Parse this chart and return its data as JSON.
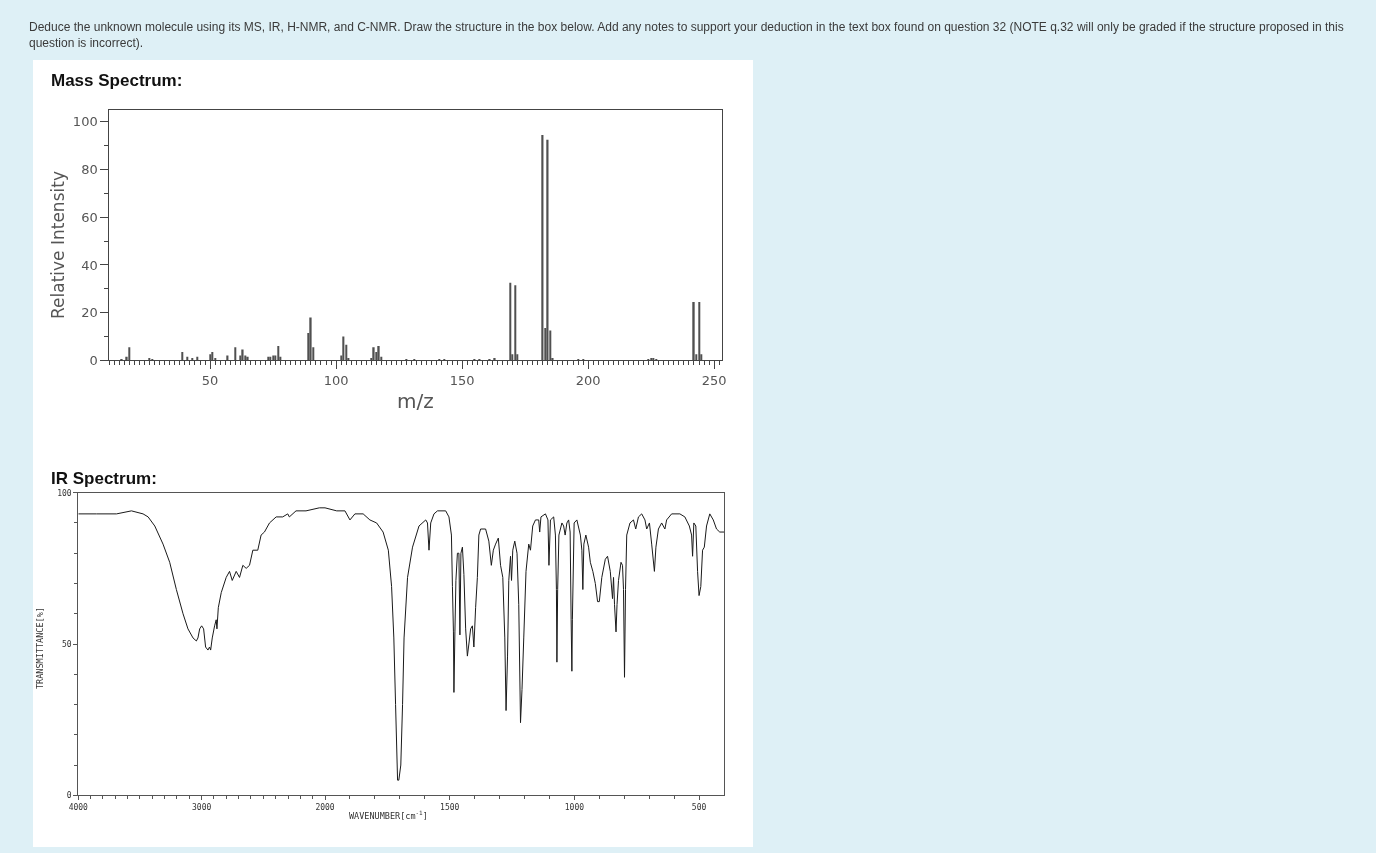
{
  "chart_data": [
    {
      "type": "bar",
      "title": "Mass Spectrum:",
      "annotations": [
        "Deduce the unknown molecule using its MS, IR, H-NMR, and C-NMR. Draw the structure in the box below. Add any notes to support your deduction in the text box found on question 32 (NOTE q.32 will only be graded if the structure proposed in this question is incorrect)."
      ],
      "xlabel": "m/z",
      "ylabel": "Relative Intensity",
      "color": "#505050",
      "x": [
        15,
        17,
        18,
        26,
        27,
        39,
        41,
        43,
        45,
        50,
        51,
        52,
        57,
        60,
        62,
        63,
        64,
        65,
        73,
        74,
        75,
        76,
        77,
        78,
        89,
        90,
        91,
        102,
        103,
        104,
        105,
        114,
        115,
        116,
        117,
        118,
        128,
        131,
        141,
        143,
        155,
        157,
        161,
        163,
        169,
        170,
        171,
        172,
        182,
        183,
        184,
        185,
        186,
        196,
        198,
        224,
        225,
        226,
        227,
        242,
        243,
        244,
        245
      ],
      "values": [
        0.5,
        1.5,
        5.5,
        1,
        0.5,
        3.5,
        1.5,
        1,
        1.5,
        2.5,
        3.5,
        1,
        2,
        5.5,
        2,
        4.5,
        2,
        1.5,
        1.5,
        1.5,
        2,
        2,
        6,
        1.5,
        11.5,
        18,
        5.5,
        2,
        10,
        6.5,
        1,
        1,
        5.5,
        3.5,
        6,
        1.5,
        0.5,
        0.5,
        0.5,
        0.5,
        0.5,
        0.5,
        0.5,
        1,
        32.5,
        2.5,
        31.5,
        2.5,
        94.5,
        13.5,
        92.5,
        12.5,
        1,
        0.5,
        0.5,
        0.5,
        1,
        1,
        0.5,
        24.5,
        2.5,
        24.5,
        2.5
      ],
      "xlim": [
        10,
        253
      ],
      "ylim": [
        0,
        105
      ],
      "yticks": [
        0,
        {
          "value": 10,
          "label": null
        },
        20,
        {
          "value": 30,
          "label": null
        },
        40,
        {
          "value": 50,
          "label": null
        },
        60,
        {
          "value": 70,
          "label": null
        },
        80,
        {
          "value": 90,
          "label": null
        },
        100
      ],
      "xticks": [
        {
          "value": 10,
          "label": null
        },
        {
          "value": 12,
          "label": null
        },
        {
          "value": 14,
          "label": null
        },
        {
          "value": 16,
          "label": null
        },
        {
          "value": 18,
          "label": null
        },
        {
          "value": 20,
          "label": null
        },
        {
          "value": 22,
          "label": null
        },
        {
          "value": 24,
          "label": null
        },
        {
          "value": 26,
          "label": null
        },
        {
          "value": 28,
          "label": null
        },
        {
          "value": 30,
          "label": null
        },
        {
          "value": 32,
          "label": null
        },
        {
          "value": 34,
          "label": null
        },
        {
          "value": 36,
          "label": null
        },
        {
          "value": 38,
          "label": null
        },
        {
          "value": 40,
          "label": null
        },
        {
          "value": 42,
          "label": null
        },
        {
          "value": 44,
          "label": null
        },
        {
          "value": 46,
          "label": null
        },
        {
          "value": 48,
          "label": null
        },
        50,
        {
          "value": 52,
          "label": null
        },
        {
          "value": 54,
          "label": null
        },
        {
          "value": 56,
          "label": null
        },
        {
          "value": 58,
          "label": null
        },
        {
          "value": 60,
          "label": null
        },
        {
          "value": 62,
          "label": null
        },
        {
          "value": 64,
          "label": null
        },
        {
          "value": 66,
          "label": null
        },
        {
          "value": 68,
          "label": null
        },
        {
          "value": 70,
          "label": null
        },
        {
          "value": 72,
          "label": null
        },
        {
          "value": 74,
          "label": null
        },
        {
          "value": 76,
          "label": null
        },
        {
          "value": 78,
          "label": null
        },
        {
          "value": 80,
          "label": null
        },
        {
          "value": 82,
          "label": null
        },
        {
          "value": 84,
          "label": null
        },
        {
          "value": 86,
          "label": null
        },
        {
          "value": 88,
          "label": null
        },
        {
          "value": 90,
          "label": null
        },
        {
          "value": 92,
          "label": null
        },
        {
          "value": 94,
          "label": null
        },
        {
          "value": 96,
          "label": null
        },
        {
          "value": 98,
          "label": null
        },
        100,
        {
          "value": 102,
          "label": null
        },
        {
          "value": 104,
          "label": null
        },
        {
          "value": 106,
          "label": null
        },
        {
          "value": 108,
          "label": null
        },
        {
          "value": 110,
          "label": null
        },
        {
          "value": 112,
          "label": null
        },
        {
          "value": 114,
          "label": null
        },
        {
          "value": 116,
          "label": null
        },
        {
          "value": 118,
          "label": null
        },
        {
          "value": 120,
          "label": null
        },
        {
          "value": 122,
          "label": null
        },
        {
          "value": 124,
          "label": null
        },
        {
          "value": 126,
          "label": null
        },
        {
          "value": 128,
          "label": null
        },
        {
          "value": 130,
          "label": null
        },
        {
          "value": 132,
          "label": null
        },
        {
          "value": 134,
          "label": null
        },
        {
          "value": 136,
          "label": null
        },
        {
          "value": 138,
          "label": null
        },
        {
          "value": 140,
          "label": null
        },
        {
          "value": 142,
          "label": null
        },
        {
          "value": 144,
          "label": null
        },
        {
          "value": 146,
          "label": null
        },
        {
          "value": 148,
          "label": null
        },
        150,
        {
          "value": 152,
          "label": null
        },
        {
          "value": 154,
          "label": null
        },
        {
          "value": 156,
          "label": null
        },
        {
          "value": 158,
          "label": null
        },
        {
          "value": 160,
          "label": null
        },
        {
          "value": 162,
          "label": null
        },
        {
          "value": 164,
          "label": null
        },
        {
          "value": 166,
          "label": null
        },
        {
          "value": 168,
          "label": null
        },
        {
          "value": 170,
          "label": null
        },
        {
          "value": 172,
          "label": null
        },
        {
          "value": 174,
          "label": null
        },
        {
          "value": 176,
          "label": null
        },
        {
          "value": 178,
          "label": null
        },
        {
          "value": 180,
          "label": null
        },
        {
          "value": 182,
          "label": null
        },
        {
          "value": 184,
          "label": null
        },
        {
          "value": 186,
          "label": null
        },
        {
          "value": 188,
          "label": null
        },
        {
          "value": 190,
          "label": null
        },
        {
          "value": 192,
          "label": null
        },
        {
          "value": 194,
          "label": null
        },
        {
          "value": 196,
          "label": null
        },
        {
          "value": 198,
          "label": null
        },
        200,
        {
          "value": 202,
          "label": null
        },
        {
          "value": 204,
          "label": null
        },
        {
          "value": 206,
          "label": null
        },
        {
          "value": 208,
          "label": null
        },
        {
          "value": 210,
          "label": null
        },
        {
          "value": 212,
          "label": null
        },
        {
          "value": 214,
          "label": null
        },
        {
          "value": 216,
          "label": null
        },
        {
          "value": 218,
          "label": null
        },
        {
          "value": 220,
          "label": null
        },
        {
          "value": 222,
          "label": null
        },
        {
          "value": 224,
          "label": null
        },
        {
          "value": 226,
          "label": null
        },
        {
          "value": 228,
          "label": null
        },
        {
          "value": 230,
          "label": null
        },
        {
          "value": 232,
          "label": null
        },
        {
          "value": 234,
          "label": null
        },
        {
          "value": 236,
          "label": null
        },
        {
          "value": 238,
          "label": null
        },
        {
          "value": 240,
          "label": null
        },
        {
          "value": 242,
          "label": null
        },
        {
          "value": 244,
          "label": null
        },
        {
          "value": 246,
          "label": null
        },
        {
          "value": 248,
          "label": null
        },
        250,
        {
          "value": 252,
          "label": null
        }
      ]
    },
    {
      "type": "line",
      "title": "IR Spectrum:",
      "ylabel": "TRANSMITTANCE[%]",
      "color": "#1a1a1a",
      "x": [
        4000,
        3852,
        3690,
        3569,
        3475,
        3434,
        3380,
        3313,
        3259,
        3205,
        3151,
        3111,
        3070,
        3043,
        3030,
        3016,
        3000,
        2984,
        2968,
        2949,
        2936,
        2927,
        2914,
        2895,
        2882,
        2876,
        2865,
        2841,
        2801,
        2774,
        2752,
        2720,
        2693,
        2666,
        2639,
        2612,
        2585,
        2545,
        2518,
        2491,
        2450,
        2396,
        2343,
        2302,
        2289,
        2235,
        2154,
        2046,
        2000
      ],
      "values": [
        93,
        93,
        93,
        94,
        93,
        92,
        89,
        83,
        77,
        68,
        60,
        55,
        52,
        51,
        52,
        55,
        56,
        55,
        49,
        48,
        49,
        48,
        52,
        56,
        58,
        55,
        62,
        67,
        72,
        74,
        71,
        74,
        72,
        76,
        75,
        76,
        81,
        81,
        86,
        87,
        90,
        92,
        92,
        93,
        92,
        94,
        94,
        95,
        95
      ],
      "xlim": [
        4000,
        2000
      ],
      "ylim": [
        0,
        100
      ],
      "xticks": [
        4000,
        {
          "value": 3900,
          "label": null
        },
        {
          "value": 3800,
          "label": null
        },
        {
          "value": 3700,
          "label": null
        },
        {
          "value": 3600,
          "label": null
        },
        {
          "value": 3500,
          "label": null
        },
        {
          "value": 3400,
          "label": null
        },
        {
          "value": 3300,
          "label": null
        },
        {
          "value": 3200,
          "label": null
        },
        {
          "value": 3100,
          "label": null
        },
        3000,
        {
          "value": 2900,
          "label": null
        },
        {
          "value": 2800,
          "label": null
        },
        {
          "value": 2700,
          "label": null
        },
        {
          "value": 2600,
          "label": null
        },
        {
          "value": 2500,
          "label": null
        },
        {
          "value": 2400,
          "label": null
        },
        {
          "value": 2300,
          "label": null
        },
        {
          "value": 2200,
          "label": null
        },
        {
          "value": 2100,
          "label": null
        },
        2000
      ],
      "yticks": [
        0,
        {
          "value": 10,
          "label": null
        },
        {
          "value": 20,
          "label": null
        },
        {
          "value": 30,
          "label": null
        },
        {
          "value": 40,
          "label": null
        },
        50,
        {
          "value": 60,
          "label": null
        },
        {
          "value": 70,
          "label": null
        },
        {
          "value": 80,
          "label": null
        },
        {
          "value": 90,
          "label": null
        },
        100
      ]
    },
    {
      "type": "line",
      "xlabel": "WAVENUMBER[cm$^{-1}$]",
      "color": "#1a1a1a",
      "tick_labels": "x",
      "x": [
        2000,
        1953,
        1920,
        1900,
        1880,
        1847,
        1820,
        1793,
        1767,
        1746,
        1733,
        1724,
        1717,
        1709,
        1704,
        1696,
        1689,
        1683,
        1669,
        1649,
        1623,
        1596,
        1589,
        1583,
        1576,
        1563,
        1549,
        1516,
        1503,
        1493,
        1489,
        1485,
        1483,
        1479,
        1475,
        1469,
        1463,
        1459,
        1455,
        1449,
        1443,
        1436,
        1429,
        1423,
        1416,
        1409,
        1403,
        1396,
        1389,
        1383,
        1376,
        1356,
        1343,
        1333,
        1325,
        1316,
        1305,
        1296,
        1287,
        1279,
        1274,
        1268,
        1263,
        1256,
        1252,
        1247,
        1239,
        1230,
        1223,
        1216,
        1210,
        1203,
        1194,
        1183,
        1176,
        1167,
        1156,
        1143,
        1139,
        1134,
        1116,
        1106,
        1102,
        1096,
        1083,
        1076,
        1072,
        1070,
        1067,
        1062,
        1050,
        1043,
        1037,
        1030,
        1023,
        1017,
        1013,
        1010,
        1008,
        1001,
        990,
        976,
        970,
        966,
        962,
        954,
        943,
        936,
        926,
        916,
        907,
        900,
        890,
        876,
        867,
        856,
        847,
        843,
        839,
        833,
        829,
        823,
        813,
        807,
        803,
        799,
        795,
        790,
        777,
        763,
        754,
        743,
        730,
        717,
        710,
        699,
        690,
        679,
        673,
        663,
        650,
        637,
        630,
        610,
        577,
        557,
        539,
        530,
        526,
        521,
        513,
        506,
        500,
        493,
        486,
        479,
        470,
        457,
        443,
        430,
        417,
        400
      ],
      "values": [
        95,
        94,
        94,
        91,
        93,
        93,
        91,
        90,
        87,
        81,
        69,
        52,
        30,
        5,
        5,
        10,
        30,
        52,
        72,
        82,
        89,
        91,
        90,
        81,
        90,
        93,
        94,
        94,
        92,
        86,
        69,
        54,
        34,
        54,
        71,
        80,
        80,
        53,
        80,
        82,
        73,
        55,
        46,
        50,
        55,
        56,
        49,
        62,
        72,
        86,
        88,
        88,
        84,
        76,
        81,
        83,
        85,
        76,
        72,
        52,
        28,
        46,
        71,
        79,
        71,
        81,
        84,
        80,
        63,
        24,
        35,
        52,
        74,
        83,
        81,
        89,
        91,
        91,
        87,
        92,
        93,
        91,
        76,
        91,
        92,
        86,
        68,
        44,
        68,
        86,
        90,
        89,
        86,
        90,
        91,
        87,
        58,
        41,
        58,
        90,
        91,
        86,
        81,
        68,
        83,
        86,
        82,
        77,
        74,
        70,
        64,
        64,
        72,
        78,
        79,
        74,
        65,
        72,
        63,
        54,
        63,
        71,
        77,
        76,
        68,
        39,
        68,
        86,
        90,
        91,
        88,
        92,
        93,
        91,
        88,
        90,
        83,
        74,
        82,
        88,
        90,
        88,
        91,
        93,
        93,
        92,
        89,
        86,
        79,
        90,
        89,
        74,
        66,
        69,
        81,
        82,
        89,
        93,
        91,
        88,
        87,
        87
      ],
      "xlim": [
        2000,
        400
      ],
      "ylim": [
        0,
        100
      ],
      "xticks": [
        {
          "value": 1900,
          "label": null
        },
        {
          "value": 1800,
          "label": null
        },
        {
          "value": 1700,
          "label": null
        },
        {
          "value": 1600,
          "label": null
        },
        1500,
        {
          "value": 1400,
          "label": null
        },
        {
          "value": 1300,
          "label": null
        },
        {
          "value": 1200,
          "label": null
        },
        {
          "value": 1100,
          "label": null
        },
        1000,
        {
          "value": 900,
          "label": null
        },
        {
          "value": 800,
          "label": null
        },
        {
          "value": 700,
          "label": null
        },
        {
          "value": 600,
          "label": null
        },
        500
      ]
    }
  ]
}
